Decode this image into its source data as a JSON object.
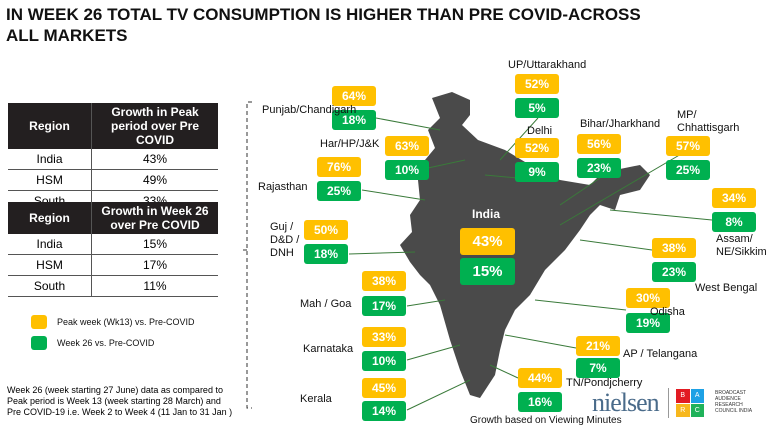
{
  "title": "IN WEEK 26 TOTAL TV CONSUMPTION IS HIGHER THAN PRE COVID-ACROSS ALL MARKETS",
  "table1": {
    "headers": [
      "Region",
      "Growth in Peak period over Pre COVID"
    ],
    "rows": [
      [
        "India",
        "43%"
      ],
      [
        "HSM",
        "49%"
      ],
      [
        "South",
        "33%"
      ]
    ]
  },
  "table2": {
    "headers": [
      "Region",
      "Growth in Week 26 over Pre COVID"
    ],
    "rows": [
      [
        "India",
        "15%"
      ],
      [
        "HSM",
        "17%"
      ],
      [
        "South",
        "11%"
      ]
    ]
  },
  "legend": [
    {
      "label": "Peak week (Wk13) vs. Pre-COVID",
      "color": "#ffc000"
    },
    {
      "label": "Week 26 vs. Pre-COVID",
      "color": "#00b050"
    }
  ],
  "note": "Week 26 (week starting 27 June) data as compared to Peak period is Week 13 (week starting 28 March) and  Pre COVID-19 i.e. Week 2 to Week 4 (11 Jan to 31 Jan )",
  "regions": [
    {
      "name": "Punjab/Chandigarh",
      "peak": "64%",
      "week26": "18%"
    },
    {
      "name": "Har/HP/J&K",
      "peak": "63%",
      "week26": "10%"
    },
    {
      "name": "UP/Uttarakhand",
      "peak": "52%",
      "week26": "5%"
    },
    {
      "name": "Delhi",
      "peak": "52%",
      "week26": "9%"
    },
    {
      "name": "Bihar/Jharkhand",
      "peak": "56%",
      "week26": "23%"
    },
    {
      "name": "MP/ Chhattisgarh",
      "peak": "57%",
      "week26": "25%"
    },
    {
      "name": "Assam/ NE/Sikkim",
      "peak": "34%",
      "week26": "8%"
    },
    {
      "name": "Rajasthan",
      "peak": "76%",
      "week26": "25%"
    },
    {
      "name": "Guj / D&D / DNH",
      "peak": "50%",
      "week26": "18%"
    },
    {
      "name": "India",
      "peak": "43%",
      "week26": "15%"
    },
    {
      "name": "West Bengal",
      "peak": "38%",
      "week26": "23%"
    },
    {
      "name": "Mah / Goa",
      "peak": "38%",
      "week26": "17%"
    },
    {
      "name": "Odisha",
      "peak": "30%",
      "week26": "19%"
    },
    {
      "name": "Karnataka",
      "peak": "33%",
      "week26": "10%"
    },
    {
      "name": "AP / Telangana",
      "peak": "21%",
      "week26": "7%"
    },
    {
      "name": "Kerala",
      "peak": "45%",
      "week26": "14%"
    },
    {
      "name": "TN/Pondjcherry",
      "peak": "44%",
      "week26": "16%"
    }
  ],
  "footer": "Growth based on Viewing Minutes",
  "logos": {
    "nielsen": "nielsen",
    "barc_letters": [
      "B",
      "A",
      "R",
      "C"
    ],
    "barc_text": "BROADCAST AUDIENCE RESEARCH COUNCIL INDIA"
  }
}
